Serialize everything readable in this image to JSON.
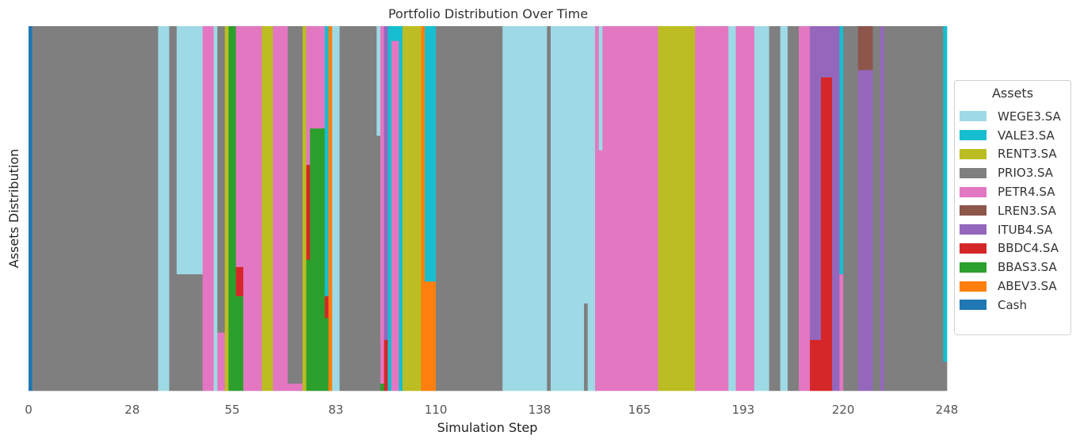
{
  "chart_data": {
    "type": "area",
    "stacked": true,
    "normalized": true,
    "title": "Portfolio Distribution Over Time",
    "xlabel": "Simulation Step",
    "ylabel": "Assets Distribution",
    "xlim": [
      0,
      248
    ],
    "ylim": [
      0,
      1
    ],
    "xticks": [
      0,
      28,
      55,
      83,
      110,
      138,
      165,
      193,
      220,
      248
    ],
    "grid": false,
    "legend": {
      "title": "Assets",
      "placement": "right"
    },
    "stack_order_bottom_to_top": [
      "Cash",
      "ABEV3.SA",
      "BBAS3.SA",
      "BBDC4.SA",
      "ITUB4.SA",
      "LREN3.SA",
      "PETR4.SA",
      "PRIO3.SA",
      "RENT3.SA",
      "VALE3.SA",
      "WEGE3.SA"
    ],
    "series": [
      {
        "name": "WEGE3.SA",
        "color": "#9edae5"
      },
      {
        "name": "VALE3.SA",
        "color": "#17becf"
      },
      {
        "name": "RENT3.SA",
        "color": "#bcbd22"
      },
      {
        "name": "PRIO3.SA",
        "color": "#7f7f7f"
      },
      {
        "name": "PETR4.SA",
        "color": "#e377c2"
      },
      {
        "name": "LREN3.SA",
        "color": "#8c564b"
      },
      {
        "name": "ITUB4.SA",
        "color": "#9467bd"
      },
      {
        "name": "BBDC4.SA",
        "color": "#d62728"
      },
      {
        "name": "BBAS3.SA",
        "color": "#2ca02c"
      },
      {
        "name": "ABEV3.SA",
        "color": "#ff7f0e"
      },
      {
        "name": "Cash",
        "color": "#1f77b4"
      }
    ],
    "segments": [
      {
        "x": [
          0,
          1
        ],
        "alloc": {
          "Cash": 1.0
        }
      },
      {
        "x": [
          1,
          35
        ],
        "alloc": {
          "PRIO3.SA": 1.0
        }
      },
      {
        "x": [
          35,
          38
        ],
        "alloc": {
          "WEGE3.SA": 1.0
        }
      },
      {
        "x": [
          38,
          40
        ],
        "alloc": {
          "PRIO3.SA": 1.0
        }
      },
      {
        "x": [
          40,
          47
        ],
        "alloc": {
          "WEGE3.SA": 0.68,
          "PRIO3.SA": 0.32
        }
      },
      {
        "x": [
          47,
          50
        ],
        "alloc": {
          "PETR4.SA": 1.0
        }
      },
      {
        "x": [
          50,
          51
        ],
        "alloc": {
          "WEGE3.SA": 1.0
        }
      },
      {
        "x": [
          51,
          53
        ],
        "alloc": {
          "PETR4.SA": 0.16,
          "PRIO3.SA": 0.84
        }
      },
      {
        "x": [
          53,
          54
        ],
        "alloc": {
          "RENT3.SA": 1.0
        }
      },
      {
        "x": [
          54,
          56
        ],
        "alloc": {
          "BBAS3.SA": 1.0
        }
      },
      {
        "x": [
          56,
          58
        ],
        "alloc": {
          "BBAS3.SA": 0.26,
          "BBDC4.SA": 0.08,
          "PETR4.SA": 0.66
        }
      },
      {
        "x": [
          58,
          63
        ],
        "alloc": {
          "PETR4.SA": 1.0
        }
      },
      {
        "x": [
          63,
          66
        ],
        "alloc": {
          "RENT3.SA": 1.0
        }
      },
      {
        "x": [
          66,
          70
        ],
        "alloc": {
          "PETR4.SA": 1.0
        }
      },
      {
        "x": [
          70,
          74
        ],
        "alloc": {
          "PRIO3.SA": 0.98,
          "PETR4.SA": 0.02
        }
      },
      {
        "x": [
          74,
          75
        ],
        "alloc": {
          "RENT3.SA": 1.0
        }
      },
      {
        "x": [
          75,
          76
        ],
        "alloc": {
          "BBAS3.SA": 0.36,
          "BBDC4.SA": 0.26,
          "PETR4.SA": 0.38
        }
      },
      {
        "x": [
          76,
          80
        ],
        "alloc": {
          "BBAS3.SA": 0.72,
          "PETR4.SA": 0.28
        }
      },
      {
        "x": [
          80,
          81
        ],
        "alloc": {
          "BBAS3.SA": 0.2,
          "BBDC4.SA": 0.06,
          "VALE3.SA": 0.74
        }
      },
      {
        "x": [
          81,
          82
        ],
        "alloc": {
          "ABEV3.SA": 1.0
        }
      },
      {
        "x": [
          82,
          84
        ],
        "alloc": {
          "WEGE3.SA": 1.0
        }
      },
      {
        "x": [
          84,
          94
        ],
        "alloc": {
          "PRIO3.SA": 1.0
        }
      },
      {
        "x": [
          94,
          95
        ],
        "alloc": {
          "WEGE3.SA": 0.3,
          "PRIO3.SA": 0.7
        }
      },
      {
        "x": [
          95,
          96
        ],
        "alloc": {
          "BBAS3.SA": 0.02,
          "PETR4.SA": 0.98
        }
      },
      {
        "x": [
          96,
          97
        ],
        "alloc": {
          "BBDC4.SA": 0.14,
          "ITUB4.SA": 0.86
        }
      },
      {
        "x": [
          97,
          98
        ],
        "alloc": {
          "VALE3.SA": 1.0
        }
      },
      {
        "x": [
          98,
          100
        ],
        "alloc": {
          "PETR4.SA": 0.96,
          "VALE3.SA": 0.04
        }
      },
      {
        "x": [
          100,
          101
        ],
        "alloc": {
          "VALE3.SA": 1.0
        }
      },
      {
        "x": [
          101,
          106
        ],
        "alloc": {
          "RENT3.SA": 1.0
        }
      },
      {
        "x": [
          106,
          107
        ],
        "alloc": {
          "ABEV3.SA": 1.0
        }
      },
      {
        "x": [
          107,
          110
        ],
        "alloc": {
          "ABEV3.SA": 0.3,
          "VALE3.SA": 0.7
        }
      },
      {
        "x": [
          110,
          128
        ],
        "alloc": {
          "PRIO3.SA": 1.0
        }
      },
      {
        "x": [
          128,
          140
        ],
        "alloc": {
          "WEGE3.SA": 1.0
        }
      },
      {
        "x": [
          140,
          141
        ],
        "alloc": {
          "PRIO3.SA": 1.0
        }
      },
      {
        "x": [
          141,
          150
        ],
        "alloc": {
          "WEGE3.SA": 1.0
        }
      },
      {
        "x": [
          150,
          151
        ],
        "alloc": {
          "PRIO3.SA": 0.24,
          "WEGE3.SA": 0.76
        }
      },
      {
        "x": [
          151,
          153
        ],
        "alloc": {
          "WEGE3.SA": 1.0
        }
      },
      {
        "x": [
          153,
          154
        ],
        "alloc": {
          "PETR4.SA": 1.0
        }
      },
      {
        "x": [
          154,
          155
        ],
        "alloc": {
          "PETR4.SA": 0.66,
          "WEGE3.SA": 0.34
        }
      },
      {
        "x": [
          155,
          170
        ],
        "alloc": {
          "PETR4.SA": 1.0
        }
      },
      {
        "x": [
          170,
          180
        ],
        "alloc": {
          "RENT3.SA": 1.0
        }
      },
      {
        "x": [
          180,
          189
        ],
        "alloc": {
          "PETR4.SA": 1.0
        }
      },
      {
        "x": [
          189,
          191
        ],
        "alloc": {
          "WEGE3.SA": 1.0
        }
      },
      {
        "x": [
          191,
          196
        ],
        "alloc": {
          "PETR4.SA": 1.0
        }
      },
      {
        "x": [
          196,
          200
        ],
        "alloc": {
          "WEGE3.SA": 1.0
        }
      },
      {
        "x": [
          200,
          203
        ],
        "alloc": {
          "PRIO3.SA": 1.0
        }
      },
      {
        "x": [
          203,
          205
        ],
        "alloc": {
          "WEGE3.SA": 1.0
        }
      },
      {
        "x": [
          205,
          208
        ],
        "alloc": {
          "PRIO3.SA": 1.0
        }
      },
      {
        "x": [
          208,
          211
        ],
        "alloc": {
          "PETR4.SA": 1.0
        }
      },
      {
        "x": [
          211,
          214
        ],
        "alloc": {
          "BBDC4.SA": 0.14,
          "ITUB4.SA": 0.86
        }
      },
      {
        "x": [
          214,
          217
        ],
        "alloc": {
          "BBDC4.SA": 0.86,
          "ITUB4.SA": 0.14
        }
      },
      {
        "x": [
          217,
          219
        ],
        "alloc": {
          "ITUB4.SA": 1.0
        }
      },
      {
        "x": [
          219,
          220
        ],
        "alloc": {
          "PETR4.SA": 0.32,
          "VALE3.SA": 0.68
        }
      },
      {
        "x": [
          220,
          224
        ],
        "alloc": {
          "PRIO3.SA": 1.0
        }
      },
      {
        "x": [
          224,
          228
        ],
        "alloc": {
          "ITUB4.SA": 0.88,
          "LREN3.SA": 0.12
        }
      },
      {
        "x": [
          228,
          230
        ],
        "alloc": {
          "PRIO3.SA": 1.0
        }
      },
      {
        "x": [
          230,
          231
        ],
        "alloc": {
          "ITUB4.SA": 1.0
        }
      },
      {
        "x": [
          231,
          247
        ],
        "alloc": {
          "PRIO3.SA": 1.0
        }
      },
      {
        "x": [
          247,
          248
        ],
        "alloc": {
          "VALE3.SA": 0.92,
          "PRIO3.SA": 0.08
        }
      }
    ]
  }
}
